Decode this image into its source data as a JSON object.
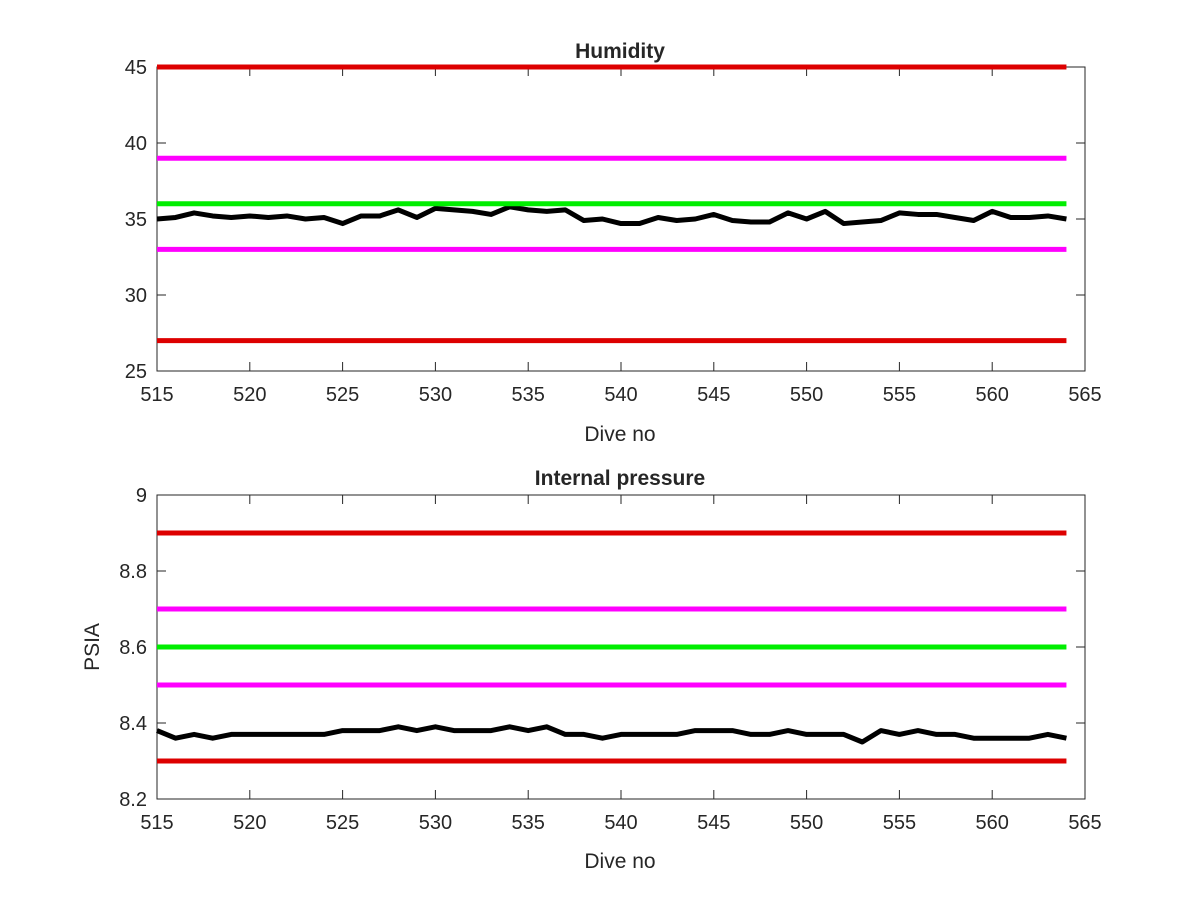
{
  "chart_data": [
    {
      "type": "line",
      "title": "Humidity",
      "xlabel": "Dive no",
      "ylabel": "",
      "xlim": [
        515,
        565
      ],
      "ylim": [
        25,
        45
      ],
      "xticks": [
        "515",
        "520",
        "525",
        "530",
        "535",
        "540",
        "545",
        "550",
        "555",
        "560",
        "565"
      ],
      "yticks": [
        "25",
        "30",
        "35",
        "40",
        "45"
      ],
      "grid": false,
      "x": [
        515,
        516,
        517,
        518,
        519,
        520,
        521,
        522,
        523,
        524,
        525,
        526,
        527,
        528,
        529,
        530,
        531,
        532,
        533,
        534,
        535,
        536,
        537,
        538,
        539,
        540,
        541,
        542,
        543,
        544,
        545,
        546,
        547,
        548,
        549,
        550,
        551,
        552,
        553,
        554,
        555,
        556,
        557,
        558,
        559,
        560,
        561,
        562,
        563,
        564
      ],
      "series": [
        {
          "color": "#000000",
          "values": [
            35.0,
            35.1,
            35.4,
            35.2,
            35.1,
            35.2,
            35.1,
            35.2,
            35.0,
            35.1,
            34.7,
            35.2,
            35.2,
            35.6,
            35.1,
            35.7,
            35.6,
            35.5,
            35.3,
            35.8,
            35.6,
            35.5,
            35.6,
            34.9,
            35.0,
            34.7,
            34.7,
            35.1,
            34.9,
            35.0,
            35.3,
            34.9,
            34.8,
            34.8,
            35.4,
            35.0,
            35.5,
            34.7,
            34.8,
            34.9,
            35.4,
            35.3,
            35.3,
            35.1,
            34.9,
            35.5,
            35.1,
            35.1,
            35.2,
            35.0
          ]
        },
        {
          "color": "#dd0000",
          "constant": 45
        },
        {
          "color": "#ff00ff",
          "constant": 39
        },
        {
          "color": "#00ee00",
          "constant": 36
        },
        {
          "color": "#ff00ff",
          "constant": 33
        },
        {
          "color": "#dd0000",
          "constant": 27
        }
      ]
    },
    {
      "type": "line",
      "title": "Internal pressure",
      "xlabel": "Dive no",
      "ylabel": "PSIA",
      "xlim": [
        515,
        565
      ],
      "ylim": [
        8.2,
        9
      ],
      "xticks": [
        "515",
        "520",
        "525",
        "530",
        "535",
        "540",
        "545",
        "550",
        "555",
        "560",
        "565"
      ],
      "yticks": [
        "8.2",
        "8.4",
        "8.6",
        "8.8",
        "9"
      ],
      "grid": false,
      "x": [
        515,
        516,
        517,
        518,
        519,
        520,
        521,
        522,
        523,
        524,
        525,
        526,
        527,
        528,
        529,
        530,
        531,
        532,
        533,
        534,
        535,
        536,
        537,
        538,
        539,
        540,
        541,
        542,
        543,
        544,
        545,
        546,
        547,
        548,
        549,
        550,
        551,
        552,
        553,
        554,
        555,
        556,
        557,
        558,
        559,
        560,
        561,
        562,
        563,
        564
      ],
      "series": [
        {
          "color": "#000000",
          "values": [
            8.38,
            8.36,
            8.37,
            8.36,
            8.37,
            8.37,
            8.37,
            8.37,
            8.37,
            8.37,
            8.38,
            8.38,
            8.38,
            8.39,
            8.38,
            8.39,
            8.38,
            8.38,
            8.38,
            8.39,
            8.38,
            8.39,
            8.37,
            8.37,
            8.36,
            8.37,
            8.37,
            8.37,
            8.37,
            8.38,
            8.38,
            8.38,
            8.37,
            8.37,
            8.38,
            8.37,
            8.37,
            8.37,
            8.35,
            8.38,
            8.37,
            8.38,
            8.37,
            8.37,
            8.36,
            8.36,
            8.36,
            8.36,
            8.37,
            8.36
          ]
        },
        {
          "color": "#dd0000",
          "constant": 8.9
        },
        {
          "color": "#ff00ff",
          "constant": 8.7
        },
        {
          "color": "#00ee00",
          "constant": 8.6
        },
        {
          "color": "#ff00ff",
          "constant": 8.5
        },
        {
          "color": "#dd0000",
          "constant": 8.3
        }
      ]
    }
  ]
}
